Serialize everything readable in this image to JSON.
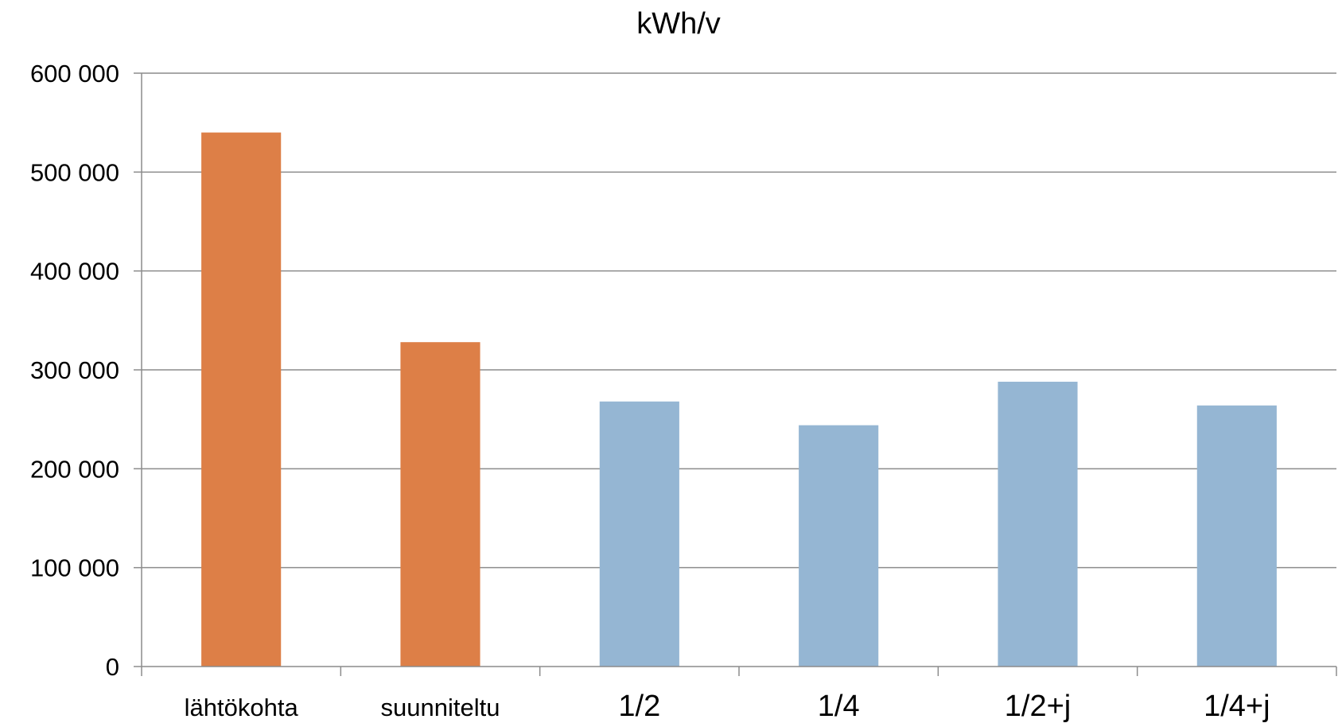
{
  "chart_data": {
    "type": "bar",
    "title": "kWh/v",
    "xlabel": "",
    "ylabel": "",
    "categories": [
      "lähtökohta",
      "suunniteltu",
      "1/2",
      "1/4",
      "1/2+j",
      "1/4+j"
    ],
    "values": [
      540000,
      328000,
      268000,
      244000,
      288000,
      264000
    ],
    "bar_colors": [
      "#DD7F47",
      "#DD7F47",
      "#95B6D3",
      "#95B6D3",
      "#95B6D3",
      "#95B6D3"
    ],
    "ylim": [
      0,
      600000
    ],
    "yticks": [
      0,
      100000,
      200000,
      300000,
      400000,
      500000,
      600000
    ],
    "ytick_labels": [
      "0",
      "100 000",
      "200 000",
      "300 000",
      "400 000",
      "500 000",
      "600 000"
    ],
    "grid": true,
    "legend": "none"
  }
}
